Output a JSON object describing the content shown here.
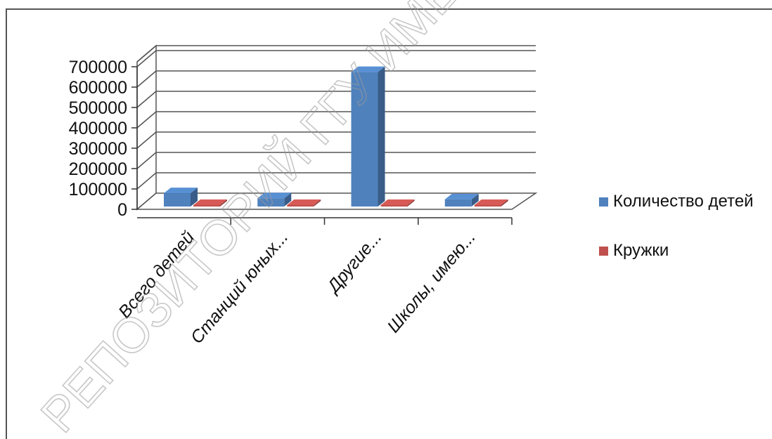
{
  "chart_data": {
    "type": "bar",
    "style": "3d-clustered-column",
    "categories": [
      "Всего детей",
      "Станций юных...",
      "Другие...",
      "Школы, имею..."
    ],
    "series": [
      {
        "name": "Количество детей",
        "values": [
          65000,
          40000,
          660000,
          35000
        ],
        "color": "#4f81bd"
      },
      {
        "name": "Кружки",
        "values": [
          0,
          0,
          0,
          0
        ],
        "color": "#c0504d"
      }
    ],
    "yticks": [
      0,
      100000,
      200000,
      300000,
      400000,
      500000,
      600000,
      700000
    ],
    "ylim": [
      0,
      700000
    ],
    "grid": true,
    "legend_position": "right"
  },
  "watermark": "РЕПОЗИТОРИЙ ГГУ ИМЕНИ Ф."
}
